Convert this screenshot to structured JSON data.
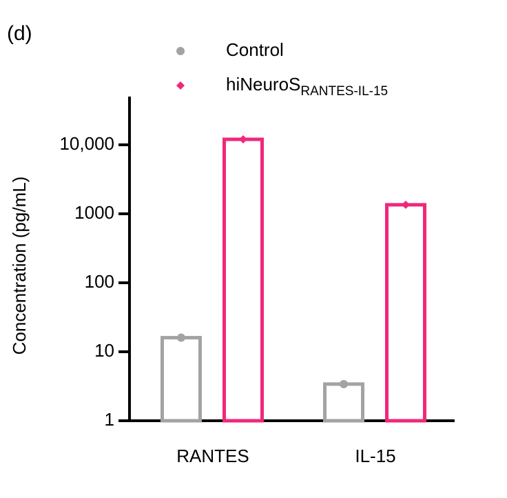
{
  "chart_data": {
    "type": "bar",
    "panel_label": "(d)",
    "ylabel": "Concentration (pg/mL)",
    "categories": [
      "RANTES",
      "IL-15"
    ],
    "series": [
      {
        "name": "Control",
        "color": "#a3a3a5",
        "marker": "circle",
        "values": [
          16,
          3.4
        ]
      },
      {
        "name": "hiNeuroS",
        "name_subscript": "RANTES-IL-15",
        "color": "#f0287a",
        "marker": "diamond",
        "values": [
          12000,
          1350
        ]
      }
    ],
    "log_scale": true,
    "ylim": [
      1,
      50000
    ],
    "yticks": [
      1,
      10,
      100,
      1000,
      {
        "value": 10000,
        "label": "10,000"
      }
    ]
  }
}
